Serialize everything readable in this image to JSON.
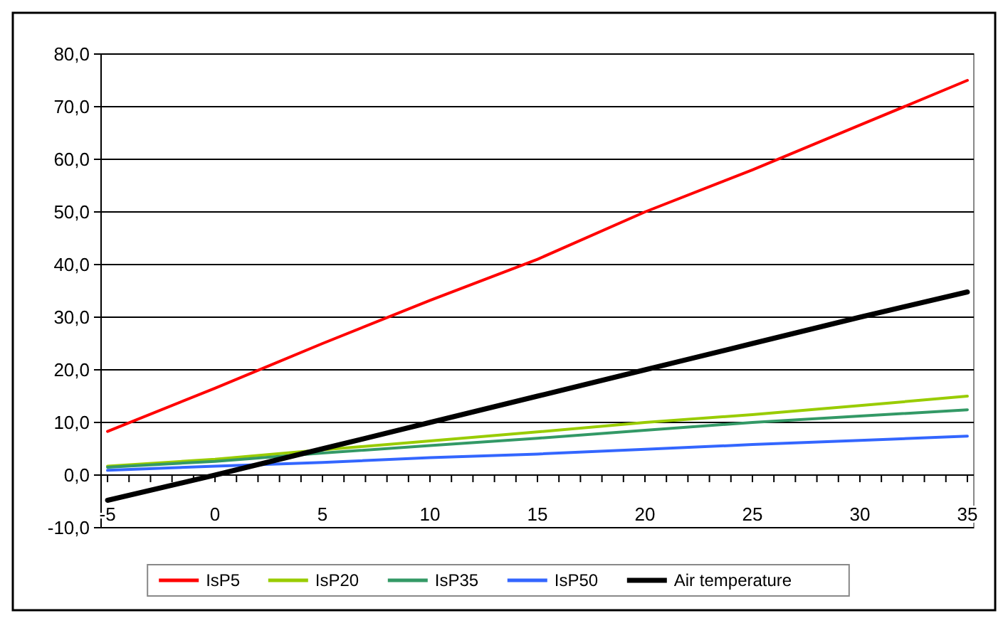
{
  "chart_data": {
    "type": "line",
    "x": [
      -5,
      0,
      5,
      10,
      15,
      20,
      25,
      30,
      35
    ],
    "series": [
      {
        "name": "IsP5",
        "color": "#ff0000",
        "values": [
          8.3,
          16.5,
          25,
          33.2,
          41,
          50,
          58,
          66.5,
          75
        ]
      },
      {
        "name": "IsP20",
        "color": "#99cc00",
        "values": [
          1.7,
          3,
          4.8,
          6.5,
          8.2,
          10,
          11.5,
          13.2,
          15
        ]
      },
      {
        "name": "IsP35",
        "color": "#339966",
        "values": [
          1.5,
          2.6,
          4.2,
          5.6,
          7,
          8.5,
          10,
          11.2,
          12.4
        ]
      },
      {
        "name": "IsP50",
        "color": "#3366ff",
        "values": [
          0.9,
          1.7,
          2.4,
          3.3,
          4,
          4.9,
          5.8,
          6.6,
          7.4
        ]
      },
      {
        "name": "Air temperature",
        "color": "#000000",
        "values": [
          -4.8,
          0,
          5,
          10,
          15,
          20,
          25,
          30,
          34.8
        ]
      }
    ],
    "xlim": [
      -5.3,
      35.3
    ],
    "xticks": [
      -5,
      {
        "value": -4,
        "label": null
      },
      {
        "value": -3,
        "label": null
      },
      {
        "value": -2,
        "label": null
      },
      {
        "value": -1,
        "label": null
      },
      0,
      {
        "value": 1,
        "label": null
      },
      {
        "value": 2,
        "label": null
      },
      {
        "value": 3,
        "label": null
      },
      {
        "value": 4,
        "label": null
      },
      5,
      {
        "value": 6,
        "label": null
      },
      {
        "value": 7,
        "label": null
      },
      {
        "value": 8,
        "label": null
      },
      {
        "value": 9,
        "label": null
      },
      10,
      {
        "value": 11,
        "label": null
      },
      {
        "value": 12,
        "label": null
      },
      {
        "value": 13,
        "label": null
      },
      {
        "value": 14,
        "label": null
      },
      15,
      {
        "value": 16,
        "label": null
      },
      {
        "value": 17,
        "label": null
      },
      {
        "value": 18,
        "label": null
      },
      {
        "value": 19,
        "label": null
      },
      20,
      {
        "value": 21,
        "label": null
      },
      {
        "value": 22,
        "label": null
      },
      {
        "value": 23,
        "label": null
      },
      {
        "value": 24,
        "label": null
      },
      25,
      {
        "value": 26,
        "label": null
      },
      {
        "value": 27,
        "label": null
      },
      {
        "value": 28,
        "label": null
      },
      {
        "value": 29,
        "label": null
      },
      30,
      {
        "value": 31,
        "label": null
      },
      {
        "value": 32,
        "label": null
      },
      {
        "value": 33,
        "label": null
      },
      {
        "value": 34,
        "label": null
      },
      35
    ],
    "ylim": [
      -10,
      80
    ],
    "yticks": [
      {
        "value": -10,
        "label": "-10,0"
      },
      {
        "value": 0,
        "label": "0,0"
      },
      {
        "value": 10,
        "label": "10,0"
      },
      {
        "value": 20,
        "label": "20,0"
      },
      {
        "value": 30,
        "label": "30,0"
      },
      {
        "value": 40,
        "label": "40,0"
      },
      {
        "value": 50,
        "label": "50,0"
      },
      {
        "value": 60,
        "label": "60,0"
      },
      {
        "value": 70,
        "label": "70,0"
      },
      {
        "value": 80,
        "label": "80,0"
      }
    ],
    "grid": "y",
    "legend": "bottom",
    "marker": "none",
    "line_style": "solid"
  }
}
